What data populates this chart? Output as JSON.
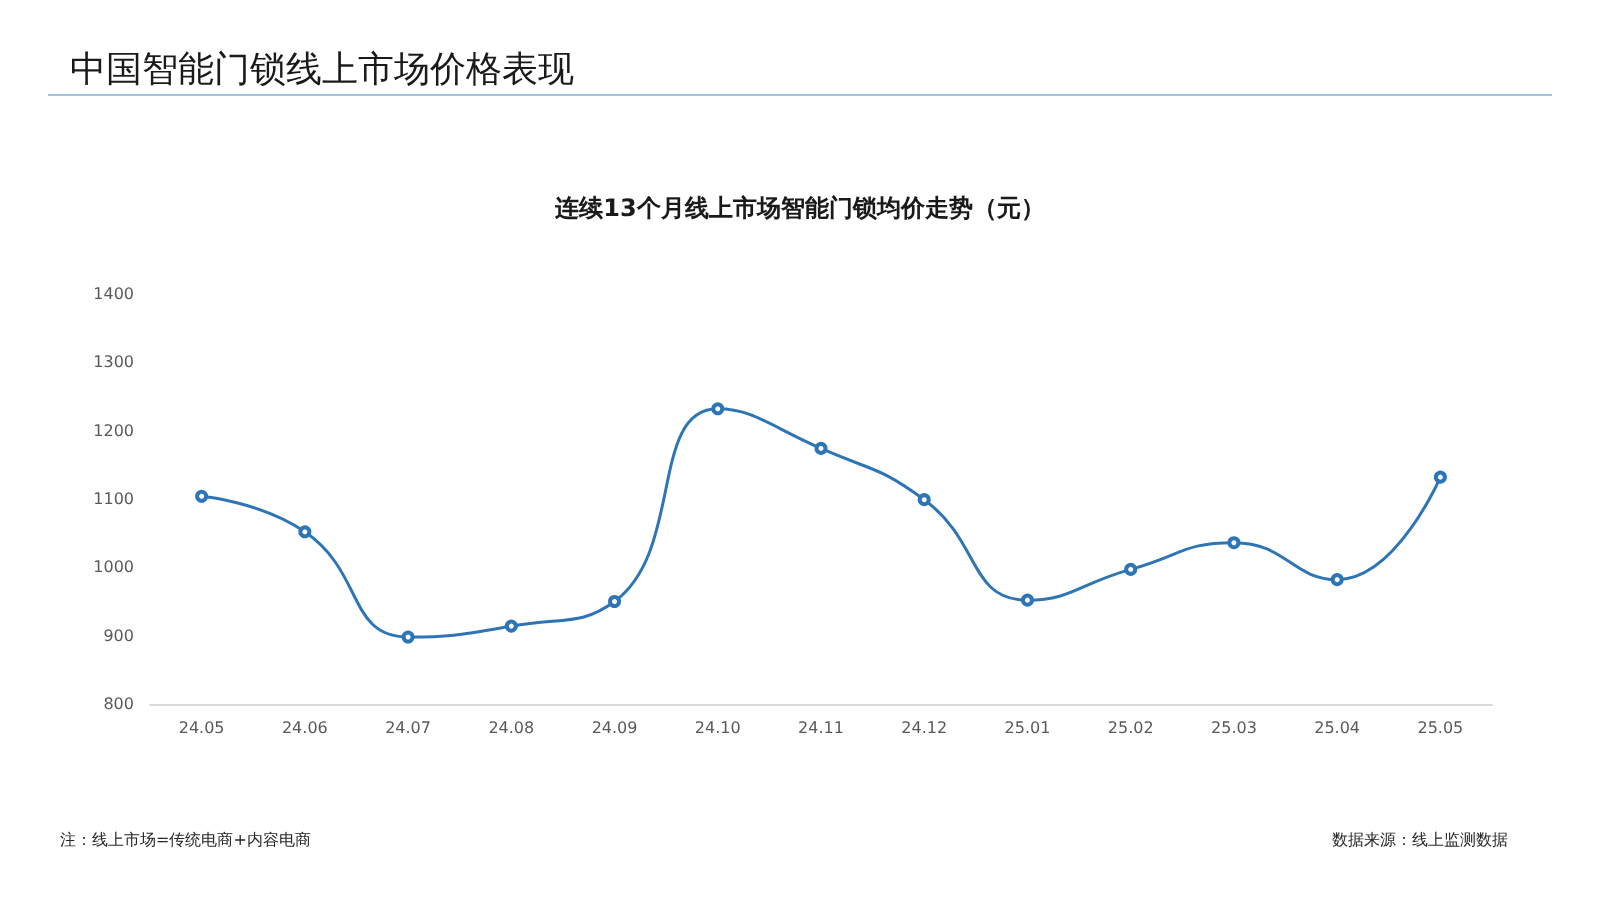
{
  "chart_data": {
    "type": "line",
    "title": "中国智能门锁线上市场价格表现",
    "subtitle": "连续13个月线上市场智能门锁均价走势（元）",
    "categories": [
      "24.05",
      "24.06",
      "24.07",
      "24.08",
      "24.09",
      "24.10",
      "24.11",
      "24.12",
      "25.01",
      "25.02",
      "25.03",
      "25.04",
      "25.05"
    ],
    "series": [
      {
        "color": "#2e75b6",
        "values": [
          1104,
          1052,
          898,
          914,
          950,
          1232,
          1174,
          1099,
          952,
          997,
          1036,
          982,
          1132
        ]
      }
    ],
    "ylim": [
      800,
      1400
    ],
    "yticks": [
      800,
      900,
      1000,
      1100,
      1200,
      1300,
      1400
    ],
    "grid": false,
    "marker": "circle",
    "line_style": "solid",
    "annotations": [
      "注：线上市场=传统电商+内容电商",
      "数据来源：线上监测数据"
    ]
  }
}
